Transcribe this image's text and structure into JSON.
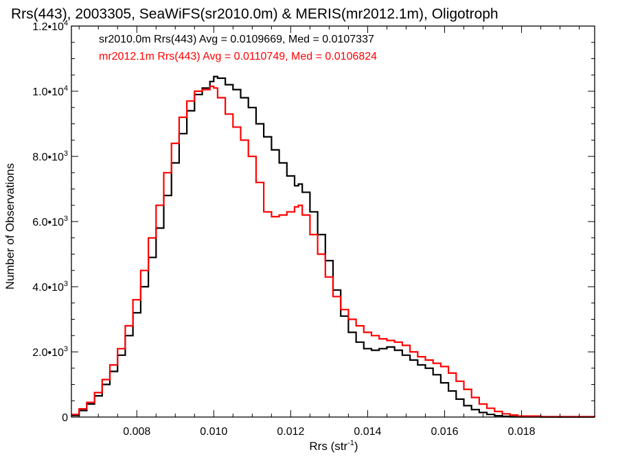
{
  "chart_data": {
    "type": "line",
    "title": "Rrs(443), 2003305, SeaWiFS(sr2010.0m) & MERIS(mr2012.1m), Oligotroph",
    "xlabel": "Rrs (str",
    "xlabel_sup": "-1",
    "xlabel_close": ")",
    "ylabel": "Number of Observations",
    "xlim": [
      0.0063,
      0.0199
    ],
    "ylim": [
      0,
      12000
    ],
    "x_ticks": [
      0.008,
      0.01,
      0.012,
      0.014,
      0.016,
      0.018
    ],
    "x_tick_labels": [
      "0.008",
      "0.010",
      "0.012",
      "0.014",
      "0.016",
      "0.018"
    ],
    "y_ticks": [
      0,
      2000,
      4000,
      6000,
      8000,
      10000,
      12000
    ],
    "y_tick_labels": [
      {
        "base": "0",
        "exp": ""
      },
      {
        "base": "2.0•10",
        "exp": "3"
      },
      {
        "base": "4.0•10",
        "exp": "3"
      },
      {
        "base": "6.0•10",
        "exp": "3"
      },
      {
        "base": "8.0•10",
        "exp": "3"
      },
      {
        "base": "1.0•10",
        "exp": "4"
      },
      {
        "base": "1.2•10",
        "exp": "4"
      }
    ],
    "grid": false,
    "legend_placement": "top-left",
    "series": [
      {
        "name": "sr2010.0m Rrs(443) Avg = 0.0109669, Med = 0.0107337",
        "color": "#000000",
        "x": [
          0.0063,
          0.0065,
          0.0067,
          0.0069,
          0.0071,
          0.0073,
          0.0075,
          0.0077,
          0.0079,
          0.0081,
          0.0083,
          0.0085,
          0.0087,
          0.0089,
          0.0091,
          0.0093,
          0.0095,
          0.0097,
          0.0099,
          0.01,
          0.0101,
          0.0103,
          0.0105,
          0.0107,
          0.0109,
          0.0111,
          0.0113,
          0.0115,
          0.0117,
          0.0119,
          0.0121,
          0.0122,
          0.0123,
          0.0125,
          0.0127,
          0.0129,
          0.0131,
          0.0133,
          0.0135,
          0.0137,
          0.0139,
          0.0141,
          0.0143,
          0.0145,
          0.0147,
          0.0149,
          0.0151,
          0.0153,
          0.0155,
          0.0157,
          0.0159,
          0.0161,
          0.0163,
          0.0165,
          0.0167,
          0.0169,
          0.0171,
          0.0173,
          0.0175,
          0.0177,
          0.0179,
          0.0185,
          0.0199
        ],
        "y": [
          50,
          200,
          400,
          650,
          1000,
          1400,
          1900,
          2500,
          3200,
          4000,
          4900,
          5800,
          6800,
          7800,
          8700,
          9400,
          9900,
          10100,
          10300,
          10450,
          10400,
          10200,
          10050,
          9800,
          9500,
          9000,
          8600,
          8200,
          7800,
          7400,
          7100,
          7150,
          6900,
          6300,
          5600,
          4800,
          3900,
          3100,
          2600,
          2300,
          2100,
          2050,
          2100,
          2150,
          2050,
          1900,
          1750,
          1600,
          1500,
          1300,
          1050,
          800,
          550,
          350,
          230,
          140,
          80,
          40,
          20,
          8,
          4,
          0,
          0
        ]
      },
      {
        "name": "mr2012.1m Rrs(443) Avg = 0.0110749, Med = 0.0106824",
        "color": "#ff0000",
        "x": [
          0.0063,
          0.0065,
          0.0067,
          0.0069,
          0.0071,
          0.0073,
          0.0075,
          0.0077,
          0.0079,
          0.0081,
          0.0083,
          0.0085,
          0.0087,
          0.0089,
          0.0091,
          0.0093,
          0.0095,
          0.0097,
          0.0099,
          0.01,
          0.0101,
          0.0103,
          0.0105,
          0.0107,
          0.0109,
          0.0111,
          0.0113,
          0.0115,
          0.0117,
          0.0119,
          0.0121,
          0.0122,
          0.0123,
          0.0125,
          0.0127,
          0.0129,
          0.0131,
          0.0133,
          0.0135,
          0.0137,
          0.0139,
          0.0141,
          0.0143,
          0.0145,
          0.0147,
          0.0149,
          0.0151,
          0.0153,
          0.0155,
          0.0157,
          0.0159,
          0.0161,
          0.0163,
          0.0165,
          0.0167,
          0.0169,
          0.0171,
          0.0173,
          0.0175,
          0.0177,
          0.0179,
          0.0185,
          0.0199
        ],
        "y": [
          80,
          250,
          450,
          750,
          1150,
          1600,
          2100,
          2800,
          3600,
          4500,
          5500,
          6500,
          7500,
          8400,
          9200,
          9700,
          10000,
          10050,
          10150,
          10100,
          9800,
          9300,
          8900,
          8500,
          8000,
          7200,
          6300,
          6150,
          6200,
          6300,
          6450,
          6500,
          6200,
          5600,
          5000,
          4300,
          3700,
          3300,
          3000,
          2800,
          2600,
          2500,
          2400,
          2350,
          2300,
          2200,
          2000,
          1850,
          1750,
          1650,
          1550,
          1350,
          1100,
          850,
          600,
          400,
          270,
          170,
          100,
          60,
          30,
          10,
          0
        ]
      }
    ]
  }
}
